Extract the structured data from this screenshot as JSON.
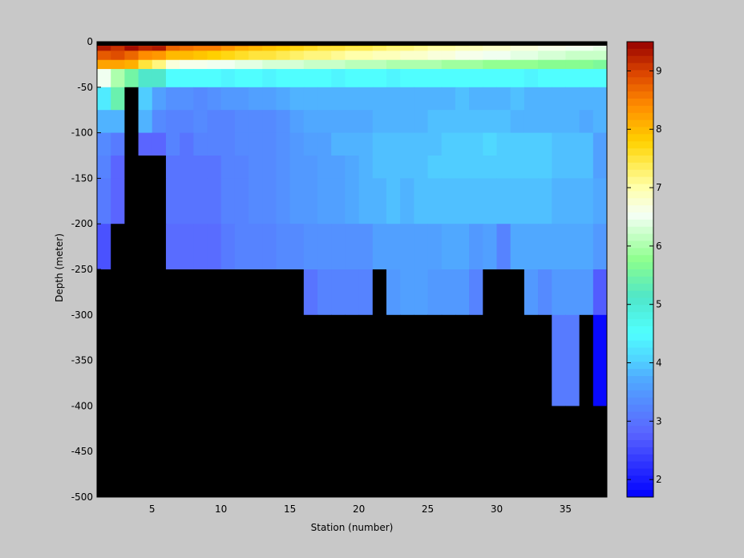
{
  "chart_data": {
    "type": "heatmap",
    "xlabel": "Station (number)",
    "ylabel": "Depth (meter)",
    "xlim": [
      1,
      38
    ],
    "ylim": [
      -500,
      0
    ],
    "x_ticks": [
      5,
      10,
      15,
      20,
      25,
      30,
      35
    ],
    "y_ticks": [
      0,
      -50,
      -100,
      -150,
      -200,
      -250,
      -300,
      -350,
      -400,
      -450,
      -500
    ],
    "colorbar": {
      "range": [
        1.7,
        9.5
      ],
      "ticks": [
        2,
        3,
        4,
        5,
        6,
        7,
        8,
        9
      ],
      "colormap": "blue-cyan-green-white-yellow-orange-darkred"
    },
    "stations": [
      1,
      2,
      3,
      4,
      5,
      6,
      7,
      8,
      9,
      10,
      11,
      12,
      13,
      14,
      15,
      16,
      17,
      18,
      19,
      20,
      21,
      22,
      23,
      24,
      25,
      26,
      27,
      28,
      29,
      30,
      31,
      32,
      33,
      34,
      35,
      36,
      37
    ],
    "depth_bins": [
      [
        0,
        -5
      ],
      [
        -5,
        -10
      ],
      [
        -10,
        -20
      ],
      [
        -20,
        -30
      ],
      [
        -30,
        -50
      ],
      [
        -50,
        -75
      ],
      [
        -75,
        -100
      ],
      [
        -100,
        -125
      ],
      [
        -125,
        -150
      ],
      [
        -150,
        -200
      ],
      [
        -200,
        -250
      ],
      [
        -250,
        -300
      ],
      [
        -300,
        -400
      ],
      [
        -400,
        -500
      ]
    ],
    "no_data_color": "#000000",
    "values": [
      [
        9.3,
        9.3,
        9.3,
        9.2,
        9.2,
        8.9,
        8.9,
        8.8,
        8.8,
        8.7,
        8.7,
        8.6,
        8.5,
        8.4,
        8.3,
        8.2,
        8.1,
        8.0,
        7.9,
        7.8,
        7.7,
        7.6,
        7.5,
        7.4,
        7.3,
        7.3,
        7.2,
        7.1,
        7.0,
        7.0,
        6.9,
        6.9,
        6.8,
        6.8,
        6.7,
        6.7,
        6.6
      ],
      [
        9.3,
        9.1,
        9.4,
        9.2,
        9.3,
        8.7,
        8.6,
        8.5,
        8.5,
        8.3,
        8.1,
        8.0,
        7.9,
        7.8,
        7.7,
        7.6,
        7.5,
        7.5,
        7.4,
        7.4,
        7.3,
        7.2,
        7.2,
        7.1,
        7.0,
        7.0,
        6.9,
        6.9,
        6.8,
        6.8,
        6.7,
        6.7,
        6.6,
        6.6,
        6.5,
        6.5,
        6.4
      ],
      [
        8.8,
        8.9,
        8.7,
        8.4,
        8.3,
        8.0,
        8.0,
        7.9,
        7.8,
        7.7,
        7.6,
        7.5,
        7.5,
        7.4,
        7.3,
        7.2,
        7.2,
        7.1,
        7.0,
        7.0,
        6.9,
        6.9,
        6.8,
        6.8,
        6.7,
        6.7,
        6.6,
        6.6,
        6.5,
        6.5,
        6.4,
        6.4,
        6.3,
        6.3,
        6.2,
        6.2,
        6.2
      ],
      [
        8.2,
        8.2,
        8.1,
        7.5,
        7.2,
        6.7,
        6.6,
        6.6,
        6.5,
        6.5,
        6.4,
        6.4,
        6.3,
        6.3,
        6.3,
        6.2,
        6.2,
        6.2,
        6.1,
        6.1,
        6.1,
        6.0,
        6.0,
        6.0,
        6.0,
        5.9,
        5.9,
        5.9,
        5.8,
        5.8,
        5.8,
        5.8,
        5.7,
        5.7,
        5.7,
        5.7,
        5.6
      ],
      [
        6.5,
        6.0,
        5.5,
        5.1,
        5.1,
        4.5,
        4.5,
        4.5,
        4.5,
        4.4,
        4.5,
        4.5,
        4.4,
        4.5,
        4.5,
        4.5,
        4.5,
        4.4,
        4.5,
        4.5,
        4.5,
        4.4,
        4.5,
        4.5,
        4.5,
        4.5,
        4.5,
        4.5,
        4.5,
        4.5,
        4.5,
        4.4,
        4.5,
        4.5,
        4.5,
        4.5,
        4.5
      ],
      [
        4.3,
        5.4,
        null,
        4.0,
        3.6,
        3.4,
        3.4,
        3.3,
        3.4,
        3.5,
        3.5,
        3.6,
        3.6,
        3.7,
        3.8,
        3.8,
        3.8,
        3.8,
        3.8,
        3.8,
        3.8,
        3.8,
        3.8,
        3.8,
        3.8,
        3.8,
        3.9,
        3.8,
        3.8,
        3.8,
        3.9,
        3.8,
        3.8,
        3.8,
        3.8,
        3.8,
        3.8
      ],
      [
        3.8,
        3.8,
        null,
        3.8,
        3.3,
        3.2,
        3.2,
        3.3,
        3.2,
        3.2,
        3.3,
        3.3,
        3.3,
        3.4,
        3.6,
        3.7,
        3.7,
        3.7,
        3.7,
        3.7,
        3.8,
        3.8,
        3.8,
        3.8,
        3.9,
        3.9,
        3.9,
        3.9,
        3.9,
        3.9,
        3.8,
        3.8,
        3.8,
        3.8,
        3.8,
        3.7,
        3.8
      ],
      [
        3.3,
        3.1,
        null,
        2.8,
        2.8,
        3.2,
        3.0,
        3.2,
        3.2,
        3.2,
        3.3,
        3.3,
        3.3,
        3.4,
        3.5,
        3.6,
        3.6,
        3.8,
        3.8,
        3.8,
        3.9,
        3.9,
        3.9,
        3.9,
        3.9,
        4.0,
        4.0,
        4.0,
        4.1,
        4.0,
        4.0,
        4.0,
        4.0,
        3.9,
        3.9,
        3.9,
        3.6
      ],
      [
        3.2,
        2.8,
        null,
        null,
        null,
        3.0,
        3.0,
        3.0,
        3.0,
        3.2,
        3.2,
        3.3,
        3.3,
        3.4,
        3.5,
        3.5,
        3.6,
        3.6,
        3.7,
        3.8,
        3.9,
        3.9,
        3.9,
        3.9,
        4.0,
        4.0,
        4.0,
        4.0,
        4.0,
        4.0,
        4.0,
        4.0,
        4.0,
        3.9,
        3.9,
        3.9,
        3.6
      ],
      [
        3.1,
        2.8,
        null,
        null,
        null,
        3.0,
        3.0,
        3.0,
        3.0,
        3.2,
        3.2,
        3.3,
        3.3,
        3.4,
        3.5,
        3.5,
        3.6,
        3.6,
        3.7,
        3.8,
        3.8,
        3.9,
        3.8,
        3.9,
        3.9,
        3.9,
        3.9,
        3.9,
        3.9,
        3.9,
        3.9,
        3.9,
        3.9,
        3.8,
        3.8,
        3.8,
        3.7
      ],
      [
        2.6,
        null,
        null,
        null,
        null,
        2.9,
        2.9,
        2.9,
        2.9,
        3.1,
        3.2,
        3.2,
        3.2,
        3.3,
        3.3,
        3.4,
        3.4,
        3.4,
        3.4,
        3.4,
        3.6,
        3.6,
        3.6,
        3.6,
        3.6,
        3.7,
        3.7,
        3.5,
        3.6,
        3.2,
        3.7,
        3.7,
        3.7,
        3.7,
        3.7,
        3.7,
        3.5
      ],
      [
        null,
        null,
        null,
        null,
        null,
        null,
        null,
        null,
        null,
        null,
        null,
        null,
        null,
        null,
        null,
        3.0,
        3.2,
        3.2,
        3.2,
        3.2,
        null,
        3.5,
        3.6,
        3.6,
        3.5,
        3.5,
        3.5,
        3.2,
        null,
        null,
        null,
        3.5,
        3.3,
        3.5,
        3.5,
        3.5,
        2.7
      ],
      [
        null,
        null,
        null,
        null,
        null,
        null,
        null,
        null,
        null,
        null,
        null,
        null,
        null,
        null,
        null,
        null,
        null,
        null,
        null,
        null,
        null,
        null,
        null,
        null,
        null,
        null,
        null,
        null,
        null,
        null,
        null,
        null,
        null,
        3.1,
        3.1,
        null,
        1.8
      ],
      [
        null,
        null,
        null,
        null,
        null,
        null,
        null,
        null,
        null,
        null,
        null,
        null,
        null,
        null,
        null,
        null,
        null,
        null,
        null,
        null,
        null,
        null,
        null,
        null,
        null,
        null,
        null,
        null,
        null,
        null,
        null,
        null,
        null,
        null,
        null,
        null,
        null
      ]
    ]
  }
}
